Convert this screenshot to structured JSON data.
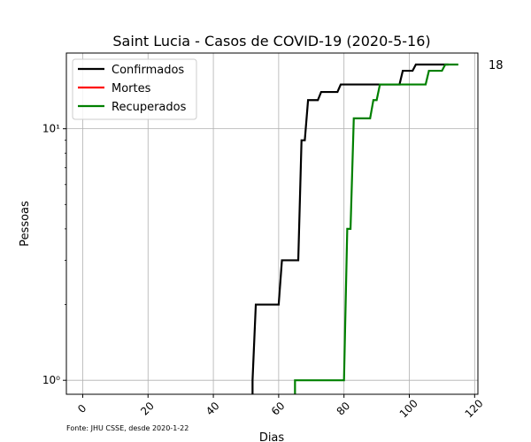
{
  "chart_data": {
    "type": "line",
    "title": "Saint Lucia - Casos de COVID-19 (2020-5-16)",
    "xlabel": "Dias",
    "ylabel": "Pessoas",
    "xlim": [
      -5,
      121
    ],
    "ylim": [
      0.88,
      20
    ],
    "yscale": "log",
    "grid": true,
    "legend_position": "top-left",
    "xticks": [
      0,
      20,
      40,
      60,
      80,
      100,
      120
    ],
    "xtick_labels": [
      "0",
      "20",
      "40",
      "60",
      "80",
      "100",
      "120"
    ],
    "yticks": [
      1,
      10
    ],
    "ytick_labels": [
      "10⁰",
      "10¹"
    ],
    "annotation": "18",
    "source_note": "Fonte: JHU CSSE, desde 2020-1-22",
    "series": [
      {
        "name": "Confirmados",
        "color": "#000000",
        "points": [
          [
            52,
            0.5
          ],
          [
            52,
            1
          ],
          [
            53,
            2
          ],
          [
            60,
            2
          ],
          [
            61,
            3
          ],
          [
            66,
            3
          ],
          [
            67,
            9
          ],
          [
            68,
            9
          ],
          [
            69,
            13
          ],
          [
            72,
            13
          ],
          [
            73,
            14
          ],
          [
            78,
            14
          ],
          [
            79,
            15
          ],
          [
            97,
            15
          ],
          [
            98,
            17
          ],
          [
            101,
            17
          ],
          [
            102,
            18
          ],
          [
            112,
            18
          ]
        ]
      },
      {
        "name": "Mortes",
        "color": "#ff0000",
        "points": []
      },
      {
        "name": "Recuperados",
        "color": "#008000",
        "points": [
          [
            65,
            0.5
          ],
          [
            65,
            1
          ],
          [
            80,
            1
          ],
          [
            81,
            4
          ],
          [
            82,
            4
          ],
          [
            83,
            11
          ],
          [
            88,
            11
          ],
          [
            89,
            13
          ],
          [
            90,
            13
          ],
          [
            91,
            15
          ],
          [
            105,
            15
          ],
          [
            106,
            17
          ],
          [
            110,
            17
          ],
          [
            111,
            18
          ],
          [
            115,
            18
          ]
        ]
      }
    ]
  }
}
